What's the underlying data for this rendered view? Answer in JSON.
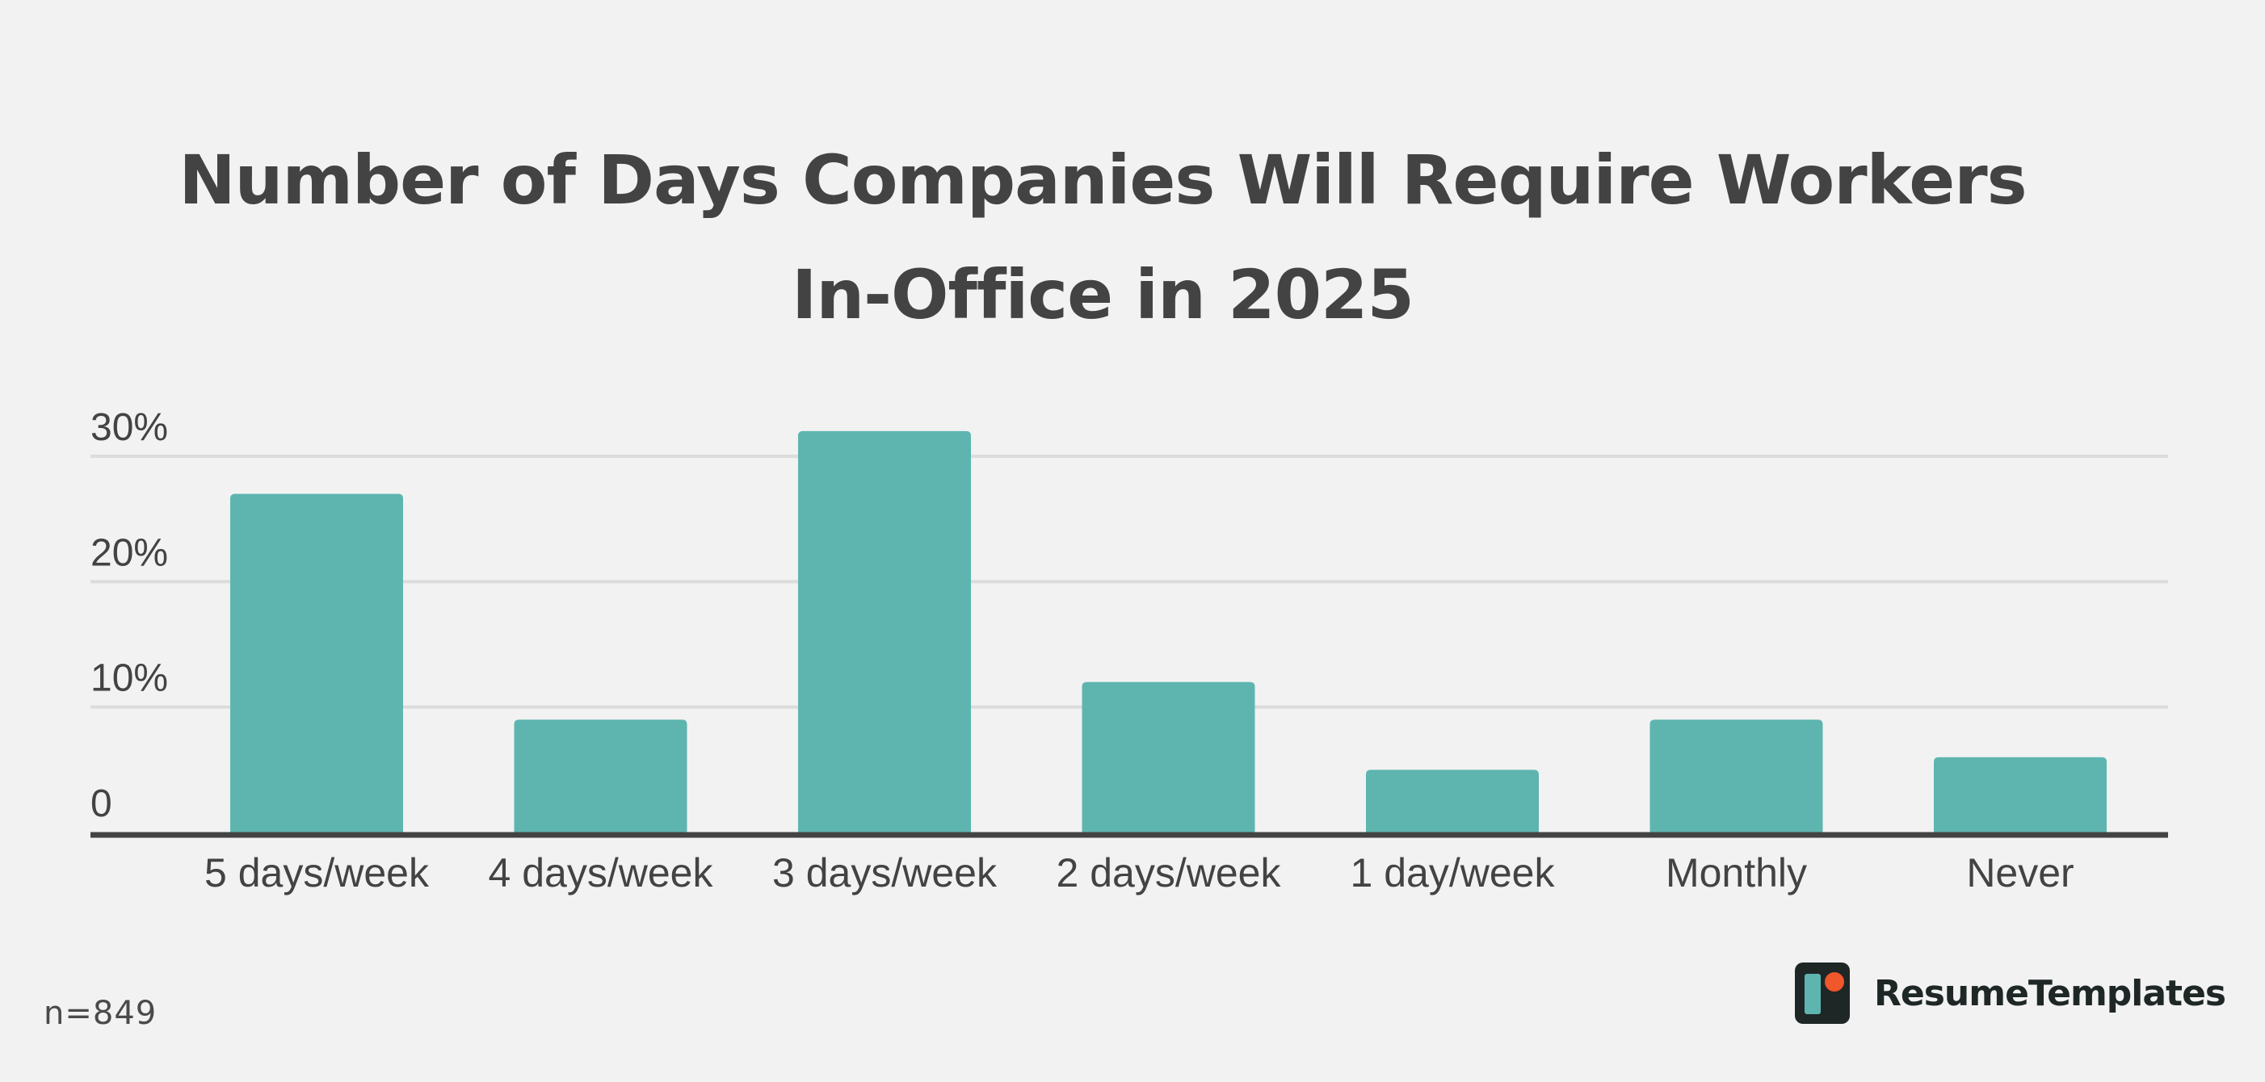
{
  "chart_data": {
    "type": "bar",
    "title_lines": [
      "Number of Days Companies Will Require Workers",
      "In-Office in 2025"
    ],
    "categories": [
      "5 days/week",
      "4 days/week",
      "3 days/week",
      "2 days/week",
      "1 day/week",
      "Monthly",
      "Never"
    ],
    "values": [
      27,
      9,
      32,
      12,
      5,
      9,
      6
    ],
    "ylim": [
      0,
      30
    ],
    "yticks": [
      0,
      10,
      20,
      30
    ],
    "ytick_labels": [
      "0",
      "10%",
      "20%",
      "30%"
    ],
    "xlabel": "",
    "ylabel": "",
    "grid": true,
    "bar_color": "#5eb5b0"
  },
  "footnote": "n=849",
  "brand": {
    "name": "ResumeTemplates",
    "logo_icon": "resumetemplates-logo-icon",
    "logo_colors": {
      "tile": "#1f2626",
      "bar": "#5eb5b0",
      "dot": "#f0572b"
    }
  }
}
